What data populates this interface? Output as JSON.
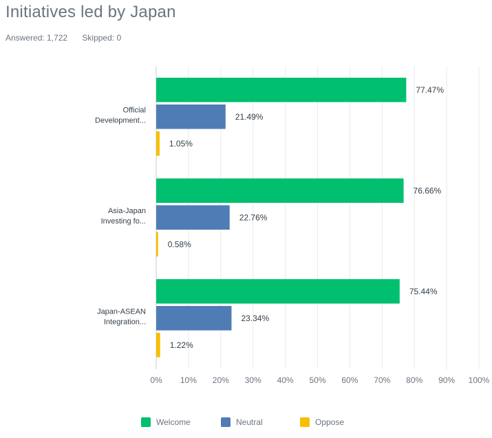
{
  "header": {
    "title": "Initiatives led by Japan",
    "answered": "Answered: 1,722",
    "skipped": "Skipped: 0"
  },
  "chart_data": {
    "type": "bar",
    "orientation": "horizontal",
    "categories": [
      "Official Development...",
      "Asia-Japan Investing fo...",
      "Japan-ASEAN Integration..."
    ],
    "series": [
      {
        "name": "Welcome",
        "color": "#00bf6f",
        "values": [
          77.47,
          76.66,
          75.44
        ]
      },
      {
        "name": "Neutral",
        "color": "#507cb6",
        "values": [
          21.49,
          22.76,
          23.34
        ]
      },
      {
        "name": "Oppose",
        "color": "#f9be00",
        "values": [
          1.05,
          0.58,
          1.22
        ]
      }
    ],
    "xlim": [
      0,
      100
    ],
    "xticks": [
      "0%",
      "10%",
      "20%",
      "30%",
      "40%",
      "50%",
      "60%",
      "70%",
      "80%",
      "90%",
      "100%"
    ],
    "grid": true,
    "legend_position": "bottom"
  }
}
